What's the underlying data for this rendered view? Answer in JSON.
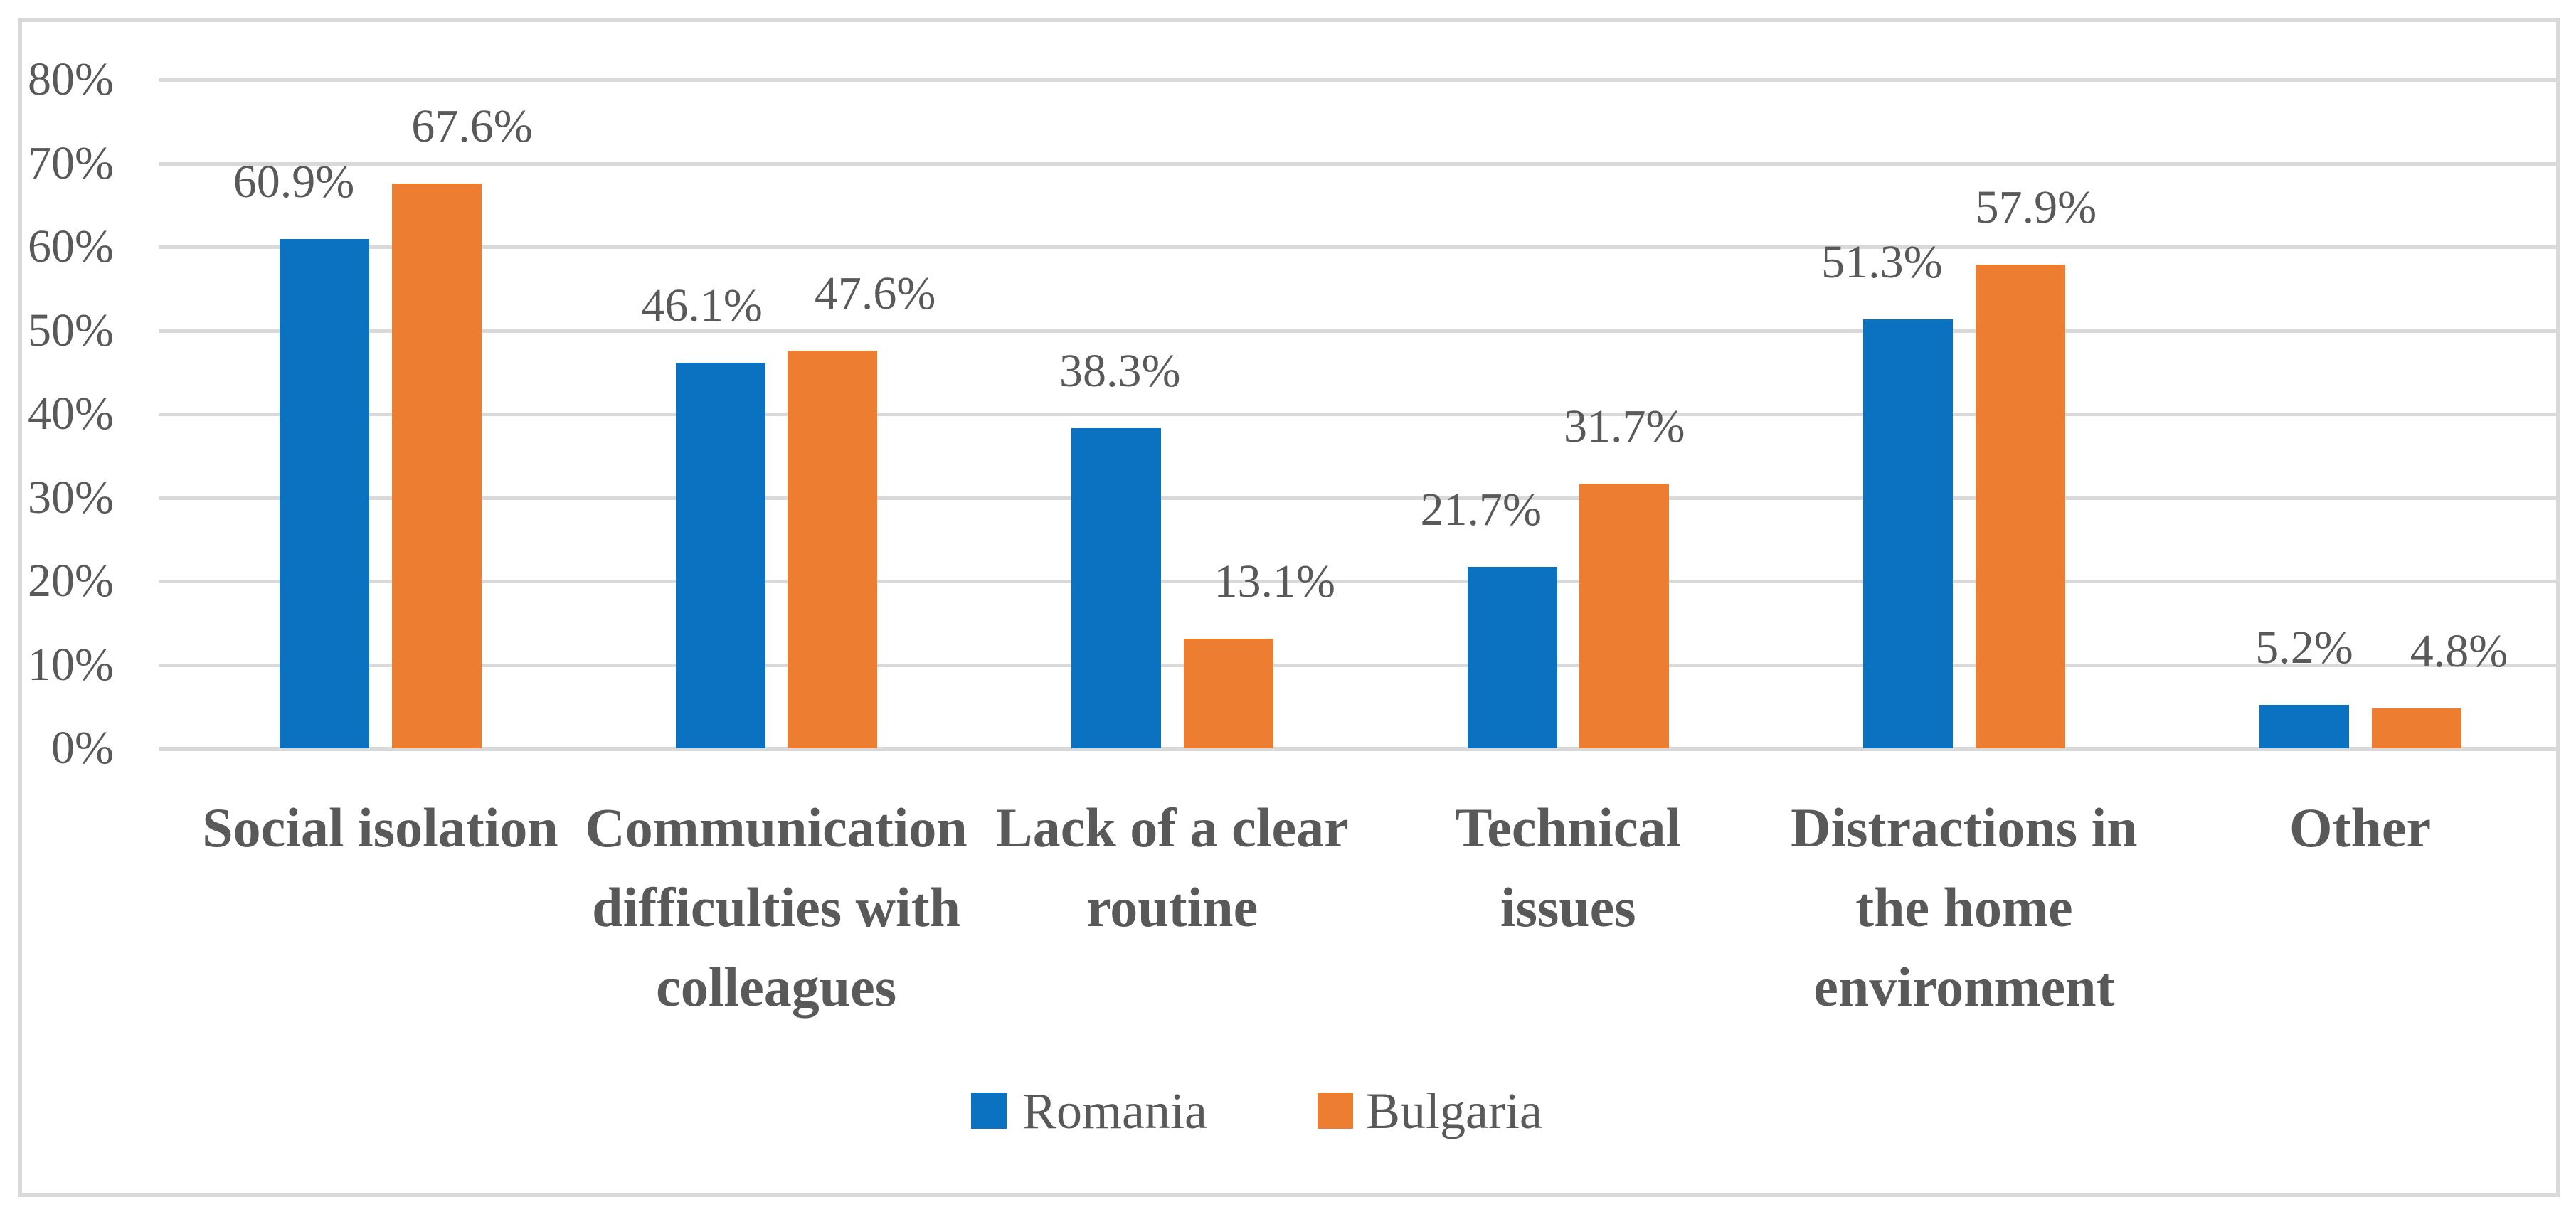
{
  "chart_data": {
    "type": "bar",
    "title": "",
    "categories": [
      "Social isolation",
      "Communication\ndifficulties with\ncolleagues",
      "Lack of a clear\nroutine",
      "Technical\nissues",
      "Distractions in\nthe home\nenvironment",
      "Other"
    ],
    "series": [
      {
        "name": "Romania",
        "color": "#0A72C0",
        "values": [
          60.9,
          46.1,
          38.3,
          21.7,
          51.3,
          5.2
        ]
      },
      {
        "name": "Bulgaria",
        "color": "#ED7D31",
        "values": [
          67.6,
          47.6,
          13.1,
          31.7,
          57.9,
          4.8
        ]
      }
    ],
    "value_label_format": "percent-one-decimal",
    "y_axis": {
      "ticks": [
        "0%",
        "10%",
        "20%",
        "30%",
        "40%",
        "50%",
        "60%",
        "70%",
        "80%"
      ],
      "min": 0,
      "max": 80,
      "step": 10
    },
    "legend": {
      "position": "bottom",
      "entries": [
        "Romania",
        "Bulgaria"
      ]
    },
    "grid": true,
    "colors": {
      "romania": "#0A72C0",
      "bulgaria": "#ED7D31",
      "gridline": "#D9D9D9",
      "frame": "#D9D9D9",
      "text": "#595959",
      "background": "#FFFFFF"
    }
  }
}
